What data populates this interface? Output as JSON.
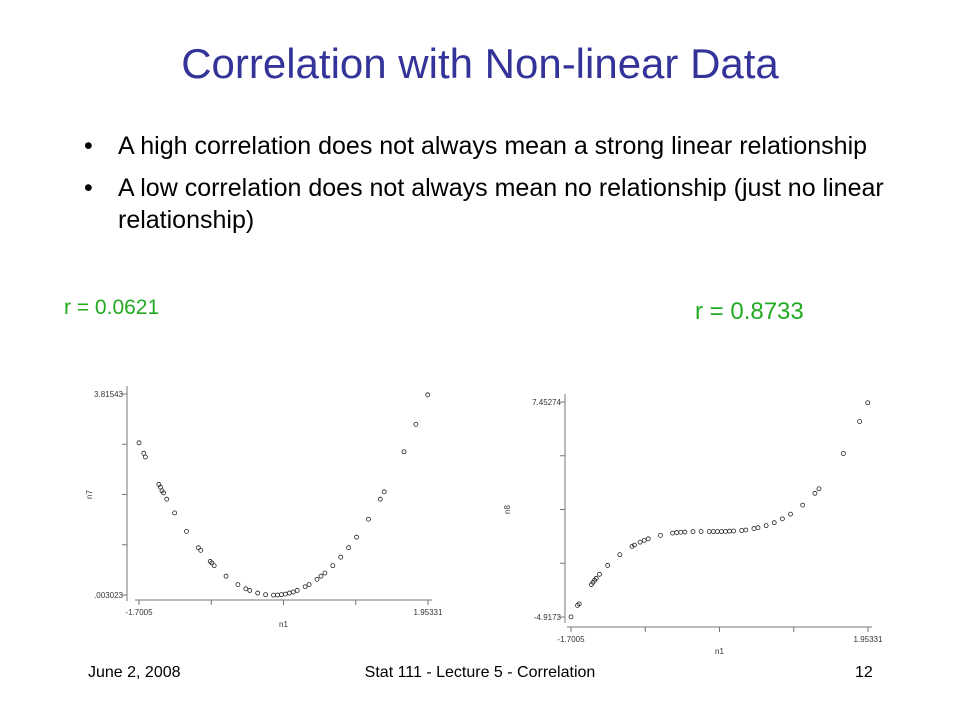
{
  "slide": {
    "title": "Correlation with Non-linear Data",
    "bullets": [
      "A high correlation does not always mean a strong linear relationship",
      "A low correlation does not always mean no relationship (just no linear relationship)"
    ],
    "bullet_glyph": "•",
    "footer": {
      "date": "June 2, 2008",
      "title": "Stat 111 - Lecture 5 - Correlation",
      "page": "12"
    },
    "colors": {
      "title": "#333399",
      "r_label": "#22aa22"
    }
  },
  "chart_data": [
    {
      "type": "scatter",
      "annotation": "r = 0.0621",
      "xlabel": "n1",
      "ylabel": "n7",
      "xlim": [
        -1.7005,
        1.95331
      ],
      "ylim": [
        0.003023,
        3.81543
      ],
      "xtick_labels": [
        "-1.7005",
        "1.95331"
      ],
      "ytick_labels": [
        ".003023",
        "3.81543"
      ],
      "points": [
        [
          -1.7,
          2.89
        ],
        [
          -1.64,
          2.69
        ],
        [
          -1.62,
          2.62
        ],
        [
          -1.45,
          2.1
        ],
        [
          -1.43,
          2.05
        ],
        [
          -1.41,
          1.98
        ],
        [
          -1.39,
          1.94
        ],
        [
          -1.35,
          1.82
        ],
        [
          -1.25,
          1.56
        ],
        [
          -1.1,
          1.21
        ],
        [
          -0.95,
          0.9
        ],
        [
          -0.92,
          0.85
        ],
        [
          -0.8,
          0.64
        ],
        [
          -0.78,
          0.61
        ],
        [
          -0.75,
          0.56
        ],
        [
          -0.6,
          0.36
        ],
        [
          -0.45,
          0.2
        ],
        [
          -0.35,
          0.12
        ],
        [
          -0.3,
          0.09
        ],
        [
          -0.2,
          0.04
        ],
        [
          -0.1,
          0.01
        ],
        [
          0.0,
          0.0
        ],
        [
          0.05,
          0.003
        ],
        [
          0.1,
          0.01
        ],
        [
          0.15,
          0.02
        ],
        [
          0.2,
          0.04
        ],
        [
          0.25,
          0.06
        ],
        [
          0.3,
          0.09
        ],
        [
          0.4,
          0.16
        ],
        [
          0.45,
          0.2
        ],
        [
          0.55,
          0.3
        ],
        [
          0.6,
          0.36
        ],
        [
          0.65,
          0.42
        ],
        [
          0.75,
          0.56
        ],
        [
          0.85,
          0.72
        ],
        [
          0.95,
          0.9
        ],
        [
          1.05,
          1.1
        ],
        [
          1.2,
          1.44
        ],
        [
          1.35,
          1.82
        ],
        [
          1.4,
          1.96
        ],
        [
          1.65,
          2.72
        ],
        [
          1.8,
          3.24
        ],
        [
          1.95,
          3.8
        ]
      ]
    },
    {
      "type": "scatter",
      "annotation": "r = 0.8733",
      "xlabel": "n1",
      "ylabel": "n8",
      "xlim": [
        -1.7005,
        1.95331
      ],
      "ylim": [
        -4.9173,
        7.45274
      ],
      "xtick_labels": [
        "-1.7005",
        "1.95331"
      ],
      "ytick_labels": [
        "-4.9173",
        "7.45274"
      ],
      "points": [
        [
          -1.7,
          -4.91
        ],
        [
          -1.62,
          -4.25
        ],
        [
          -1.6,
          -4.16
        ],
        [
          -1.45,
          -3.05
        ],
        [
          -1.43,
          -2.92
        ],
        [
          -1.41,
          -2.8
        ],
        [
          -1.39,
          -2.69
        ],
        [
          -1.35,
          -2.46
        ],
        [
          -1.25,
          -1.95
        ],
        [
          -1.1,
          -1.33
        ],
        [
          -0.95,
          -0.86
        ],
        [
          -0.92,
          -0.78
        ],
        [
          -0.85,
          -0.61
        ],
        [
          -0.8,
          -0.51
        ],
        [
          -0.75,
          -0.42
        ],
        [
          -0.6,
          -0.22
        ],
        [
          -0.45,
          -0.09
        ],
        [
          -0.4,
          -0.06
        ],
        [
          -0.35,
          -0.04
        ],
        [
          -0.3,
          -0.03
        ],
        [
          -0.2,
          -0.01
        ],
        [
          -0.1,
          0.0
        ],
        [
          0.0,
          0.0
        ],
        [
          0.05,
          0.0
        ],
        [
          0.1,
          0.0
        ],
        [
          0.15,
          0.0
        ],
        [
          0.2,
          0.01
        ],
        [
          0.25,
          0.02
        ],
        [
          0.3,
          0.03
        ],
        [
          0.4,
          0.06
        ],
        [
          0.45,
          0.09
        ],
        [
          0.55,
          0.17
        ],
        [
          0.6,
          0.22
        ],
        [
          0.7,
          0.34
        ],
        [
          0.8,
          0.51
        ],
        [
          0.9,
          0.73
        ],
        [
          1.0,
          1.0
        ],
        [
          1.15,
          1.52
        ],
        [
          1.3,
          2.2
        ],
        [
          1.35,
          2.46
        ],
        [
          1.65,
          4.49
        ],
        [
          1.85,
          6.33
        ],
        [
          1.95,
          7.41
        ]
      ]
    }
  ]
}
